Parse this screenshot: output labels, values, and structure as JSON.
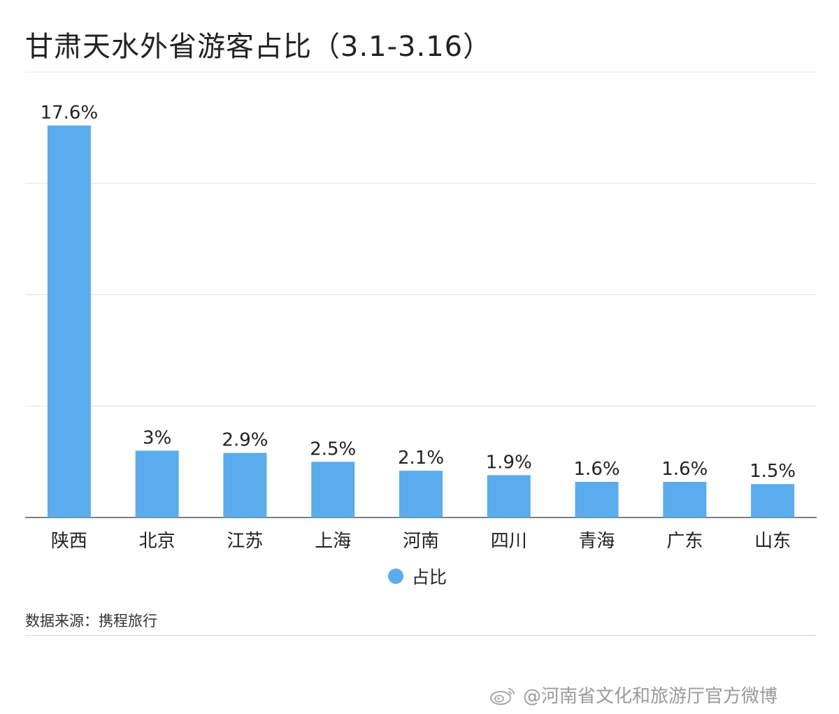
{
  "header": {
    "title": "甘肃天水外省游客占比（3.1-3.16）"
  },
  "chart_data": {
    "type": "bar",
    "title": "甘肃天水外省游客占比（3.1-3.16）",
    "categories": [
      "陕西",
      "北京",
      "江苏",
      "上海",
      "河南",
      "四川",
      "青海",
      "广东",
      "山东"
    ],
    "series": [
      {
        "name": "占比",
        "values": [
          17.6,
          3,
          2.9,
          2.5,
          2.1,
          1.9,
          1.6,
          1.6,
          1.5
        ]
      }
    ],
    "data_labels": [
      "17.6%",
      "3%",
      "2.9%",
      "2.5%",
      "2.1%",
      "1.9%",
      "1.6%",
      "1.6%",
      "1.5%"
    ],
    "ylim": [
      0,
      20
    ],
    "grid": true,
    "y_tick_labels_shown": false,
    "legend": "bottom-center",
    "bar_color": "#5aacec"
  },
  "legend": {
    "label": "占比"
  },
  "footer": {
    "source": "数据来源：携程旅行"
  },
  "watermark": {
    "text": "@河南省文化和旅游厅官方微博",
    "icon": "weibo-icon"
  },
  "colors": {
    "bar": "#5aacec",
    "grid": "#e3e3e3",
    "axis": "#555555",
    "text": "#222222"
  }
}
